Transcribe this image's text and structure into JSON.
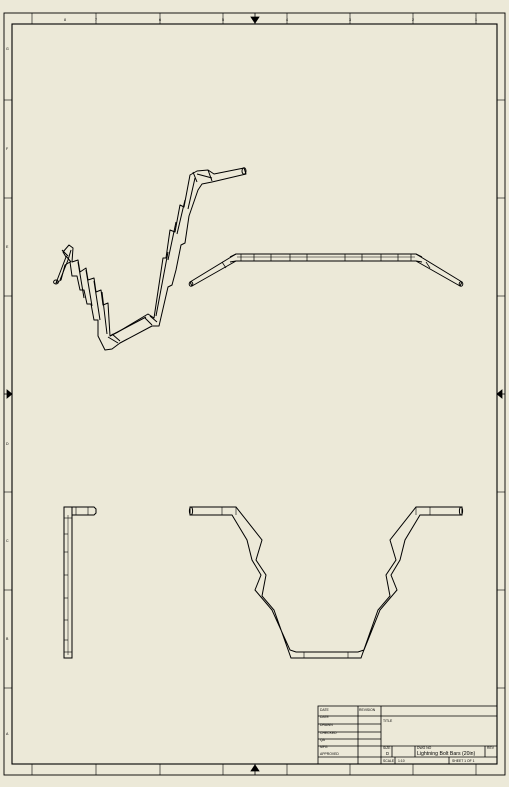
{
  "sheet": {
    "background": "#ece9d8",
    "line_color": "#000000",
    "zone_columns_top": [
      "8",
      "7",
      "6",
      "5",
      "4",
      "3",
      "2",
      "1"
    ],
    "zone_rows_left": [
      "G",
      "F",
      "E",
      "D",
      "C",
      "B",
      "A"
    ]
  },
  "title_block": {
    "header_left": "DATE",
    "header_mid": "REVISION",
    "labels": [
      "DATE",
      "DRAWN",
      "CHECKED",
      "QA",
      "MFG",
      "APPROVED"
    ],
    "title_label": "TITLE",
    "size_label": "SIZE",
    "size_value": "D",
    "dwg_label": "DWG NO",
    "dwg_value": "Lightning Bolt Bars (20in)",
    "rev_label": "REV",
    "scale_label": "SCALE",
    "scale_value": "1:10",
    "sheet_value": "SHEET 1 OF 1"
  }
}
